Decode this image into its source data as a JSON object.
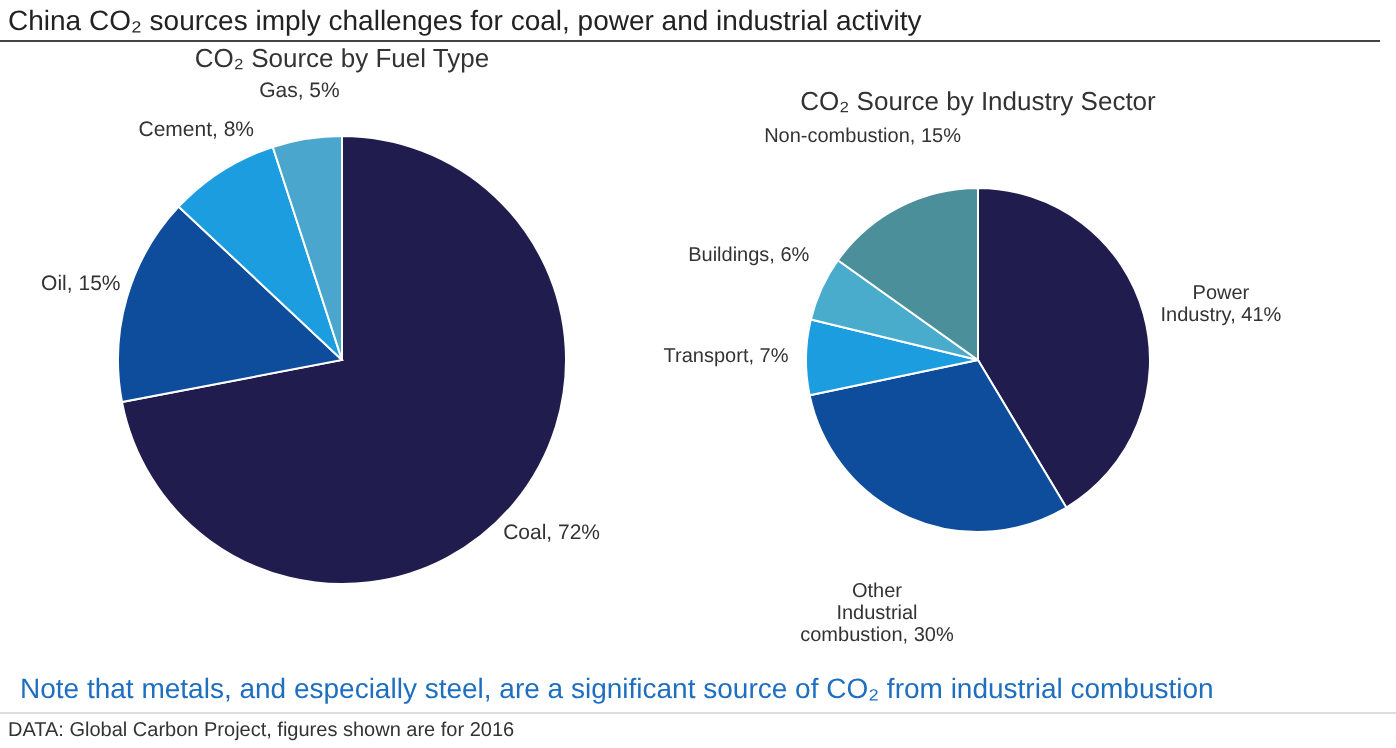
{
  "chart_data": [
    {
      "type": "pie",
      "title": "CO₂ Source by Fuel Type",
      "categories": [
        "Coal",
        "Oil",
        "Cement",
        "Gas"
      ],
      "values": [
        72,
        15,
        8,
        5
      ],
      "value_labels": [
        "72%",
        "15%",
        "8%",
        "5%"
      ],
      "colors": [
        "#211c4e",
        "#0e4c9c",
        "#1c9de0",
        "#4aa6cc"
      ],
      "annotations": [
        "China CO₂ sources imply challenges for coal, power and industrial activity"
      ]
    },
    {
      "type": "pie",
      "title": "CO₂ Source by Industry Sector",
      "categories": [
        "Power Industry",
        "Other Industrial combustion",
        "Transport",
        "Buildings",
        "Non-combustion"
      ],
      "values": [
        41,
        30,
        7,
        6,
        15
      ],
      "value_labels": [
        "41%",
        "30%",
        "7%",
        "6%",
        "15%"
      ],
      "colors": [
        "#211c4e",
        "#0e4c9c",
        "#1c9de0",
        "#4aaccc",
        "#4b8f9b"
      ],
      "annotations": [
        "Note that metals, and especially steel, are a significant source of CO₂ from industrial combustion",
        "DATA: Global Carbon Project, figures shown are for 2016"
      ]
    }
  ]
}
